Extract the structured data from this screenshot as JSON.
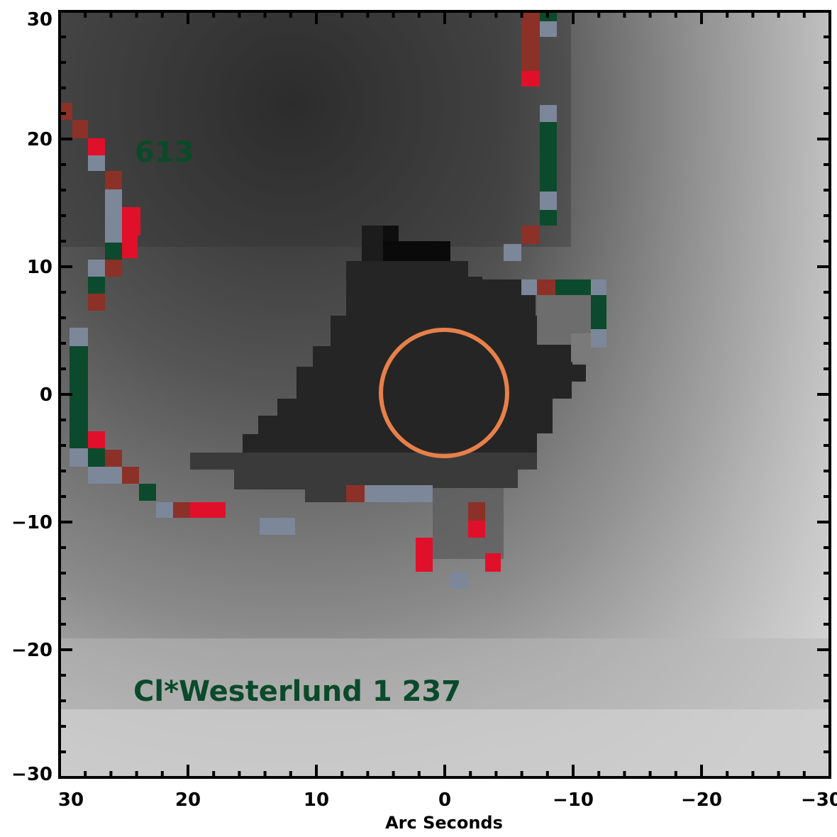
{
  "image": {
    "x_axis_label": "Arc Seconds",
    "x_ticks": [
      30,
      20,
      10,
      0,
      -10,
      -20,
      -30
    ],
    "x_tick_labels": [
      "30",
      "20",
      "10",
      "0",
      "−10",
      "−20",
      "−30"
    ],
    "y_ticks": [
      30,
      20,
      10,
      0,
      -10,
      -20,
      -30
    ],
    "y_tick_labels": [
      "30",
      "20",
      "10",
      "0",
      "−10",
      "−20",
      "−30"
    ],
    "x_range": [
      30,
      -30
    ],
    "y_range": [
      -30,
      30
    ],
    "label_number": "613",
    "label_object": "Cl*Westerlund 1 237",
    "colors": {
      "annotation": "#0a4a2a",
      "circle": "#e8804a",
      "contour_red": "#e0102a",
      "contour_darkred": "#8b3128",
      "contour_green": "#0b4a2c",
      "contour_slate": "#7c8799",
      "core": "#252525"
    }
  }
}
